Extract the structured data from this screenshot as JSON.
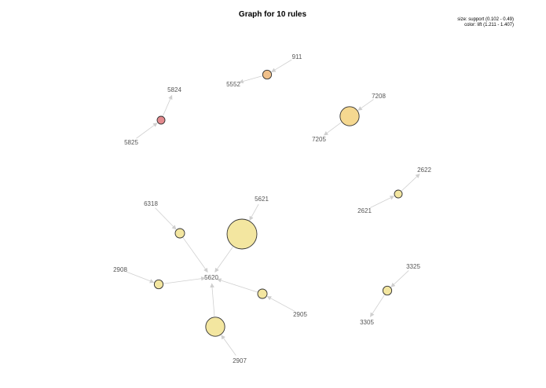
{
  "chart_data": {
    "type": "graph",
    "title": "Graph for 10 rules",
    "legend": {
      "size": "size: support (0.102 - 0.49)",
      "color": "color: lift (1.211 - 1.407)",
      "position": "top-right"
    },
    "items": [
      "911",
      "5552",
      "5824",
      "5825",
      "7208",
      "7205",
      "2622",
      "2621",
      "6318",
      "5621",
      "5620",
      "2908",
      "2905",
      "2907",
      "3325",
      "3305"
    ],
    "rules": [
      {
        "id": "rule-1",
        "lhs": [
          "911"
        ],
        "rhs": "5552",
        "support": 0.12,
        "lift": 1.29,
        "color": "#f0c08a"
      },
      {
        "id": "rule-2",
        "lhs": [
          "5825"
        ],
        "rhs": "5824",
        "support": 0.102,
        "lift": 1.407,
        "color": "#e48a8e"
      },
      {
        "id": "rule-3",
        "lhs": [
          "7208"
        ],
        "rhs": "7205",
        "support": 0.3,
        "lift": 1.22,
        "color": "#f5d890"
      },
      {
        "id": "rule-4",
        "lhs": [
          "2621"
        ],
        "rhs": "2622",
        "support": 0.102,
        "lift": 1.211,
        "color": "#f3e6a0"
      },
      {
        "id": "rule-5",
        "lhs": [
          "6318"
        ],
        "rhs": "5620",
        "support": 0.13,
        "lift": 1.211,
        "color": "#f3e6a0"
      },
      {
        "id": "rule-6",
        "lhs": [
          "5621"
        ],
        "rhs": "5620",
        "support": 0.49,
        "lift": 1.211,
        "color": "#f3e6a0"
      },
      {
        "id": "rule-7",
        "lhs": [
          "2908"
        ],
        "rhs": "5620",
        "support": 0.12,
        "lift": 1.211,
        "color": "#f3e6a0"
      },
      {
        "id": "rule-8",
        "lhs": [
          "2905"
        ],
        "rhs": "5620",
        "support": 0.13,
        "lift": 1.211,
        "color": "#f3e6a0"
      },
      {
        "id": "rule-9",
        "lhs": [
          "2907"
        ],
        "rhs": "5620",
        "support": 0.3,
        "lift": 1.211,
        "color": "#f3e6a0"
      },
      {
        "id": "rule-10",
        "lhs": [
          "3325"
        ],
        "rhs": "3305",
        "support": 0.12,
        "lift": 1.211,
        "color": "#f3e6a0"
      }
    ]
  }
}
